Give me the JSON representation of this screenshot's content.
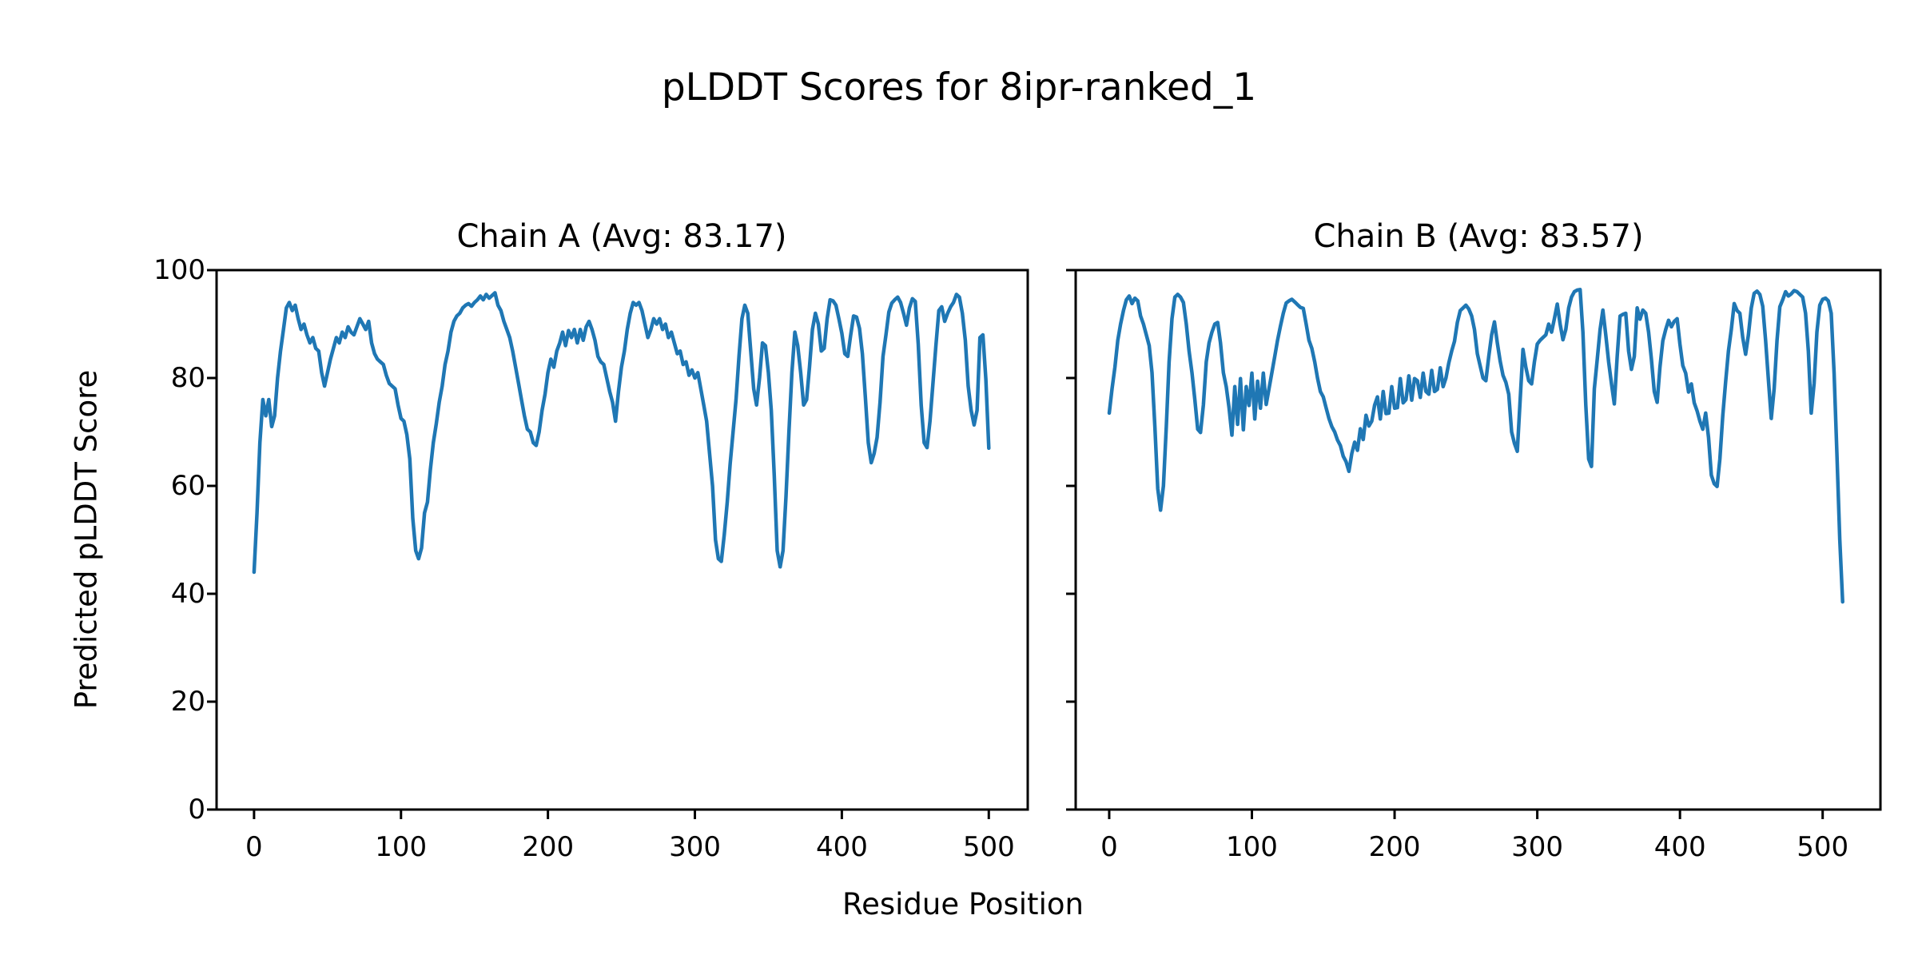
{
  "figure": {
    "suptitle": "pLDDT Scores for 8ipr-ranked_1",
    "xlabel": "Residue Position",
    "ylabel": "Predicted pLDDT Score",
    "background_color": "#ffffff",
    "text_color": "#000000",
    "line_color": "#1f77b4"
  },
  "chart_data": [
    {
      "type": "line",
      "title": "Chain A (Avg: 83.17)",
      "chain": "A",
      "avg_plddt": 83.17,
      "xlabel": "Residue Position",
      "ylabel": "Predicted pLDDT Score",
      "legend": "none",
      "grid": false,
      "line_color": "#1f77b4",
      "x_start": 0,
      "x_step": 2,
      "xlim": [
        -25.5,
        526.5
      ],
      "ylim": [
        0,
        100
      ],
      "xticks": [
        0,
        100,
        200,
        300,
        400,
        500
      ],
      "yticks": [
        0,
        20,
        40,
        60,
        80,
        100
      ],
      "values": [
        44,
        55,
        68,
        76,
        73,
        76,
        71,
        73,
        80,
        85,
        89,
        93,
        94,
        92.5,
        93.5,
        91,
        89,
        90,
        88,
        86.5,
        87.5,
        85.5,
        85,
        81,
        78.5,
        81,
        83.5,
        85.5,
        87.5,
        86.5,
        88.5,
        87.5,
        89.5,
        88.5,
        88,
        89.5,
        91,
        90,
        89,
        90.5,
        86.5,
        84.5,
        83.5,
        83,
        82.5,
        80.5,
        79,
        78.5,
        78,
        75,
        72.5,
        72,
        69.5,
        65,
        54,
        48,
        46.5,
        48.5,
        55,
        57,
        63,
        68,
        71.5,
        75.5,
        78.5,
        82.5,
        85,
        88.5,
        90.5,
        91.5,
        92,
        93,
        93.5,
        93.8,
        93.3,
        94,
        94.5,
        95.2,
        94.5,
        95.5,
        94.8,
        95.3,
        95.8,
        93.5,
        92.5,
        90.5,
        89,
        87.5,
        85,
        82,
        79,
        76,
        73,
        70.5,
        70,
        68,
        67.5,
        70,
        74,
        77,
        81,
        83.5,
        82,
        85,
        86.5,
        88.5,
        86,
        88.8,
        87.5,
        89,
        86.5,
        89,
        87,
        89.5,
        90.5,
        89,
        87,
        84,
        83,
        82.5,
        80,
        77.5,
        75.5,
        72,
        77.5,
        82,
        85,
        89,
        92,
        94,
        93.5,
        94,
        92.5,
        90,
        87.5,
        89,
        91,
        90,
        91,
        89,
        90,
        87.5,
        88.5,
        86.5,
        84.5,
        85,
        82.5,
        83,
        80.5,
        81.5,
        80,
        81,
        78,
        75,
        72,
        66,
        60,
        50,
        46.5,
        46,
        51,
        57,
        64,
        70,
        76,
        84,
        91,
        93.5,
        92,
        85,
        78,
        75,
        80,
        86.5,
        86,
        81,
        74,
        62,
        48,
        45,
        48,
        58,
        70,
        81,
        88.5,
        86,
        81,
        75,
        76,
        82,
        89,
        92,
        90,
        85,
        85.5,
        91,
        94.5,
        94.3,
        93.5,
        91,
        88.3,
        84.5,
        84,
        87.9,
        91.5,
        91.3,
        89.2,
        84.5,
        76.5,
        68,
        64.3,
        66,
        69,
        75.5,
        84,
        88,
        92.2,
        93.9,
        94.5,
        95,
        94,
        92,
        89.8,
        93,
        94.7,
        94.2,
        86.3,
        75,
        68,
        67.1,
        72,
        79,
        86,
        92.5,
        93.2,
        90.5,
        92,
        93.2,
        94,
        95.5,
        95,
        92,
        87,
        78.5,
        74,
        71.3,
        74,
        87.5,
        88,
        79.8,
        67
      ]
    },
    {
      "type": "line",
      "title": "Chain B (Avg: 83.57)",
      "chain": "B",
      "avg_plddt": 83.57,
      "xlabel": "Residue Position",
      "ylabel": "Predicted pLDDT Score",
      "legend": "none",
      "grid": false,
      "line_color": "#1f77b4",
      "x_start": 0,
      "x_step": 2,
      "xlim": [
        -23.5,
        540.5
      ],
      "ylim": [
        0,
        100
      ],
      "xticks": [
        0,
        100,
        200,
        300,
        400,
        500
      ],
      "yticks": [
        0,
        20,
        40,
        60,
        80,
        100
      ],
      "values": [
        73.5,
        78,
        82,
        87,
        90,
        92.5,
        94.5,
        95.2,
        93.8,
        94.8,
        94.3,
        91.5,
        90,
        88,
        86,
        81,
        71,
        59.5,
        55.5,
        60,
        71,
        83,
        91,
        95,
        95.5,
        95,
        94,
        90,
        85,
        81,
        76,
        70.5,
        69.9,
        75,
        83,
        86.5,
        88.5,
        90,
        90.3,
        86.5,
        81,
        78.4,
        74.5,
        69.4,
        78.4,
        71.4,
        79.9,
        70.4,
        78.4,
        74.9,
        80.9,
        72.4,
        79.4,
        74.4,
        80.9,
        75.1,
        78,
        81,
        84,
        87,
        89.6,
        92,
        93.9,
        94.3,
        94.6,
        94.1,
        93.6,
        93.1,
        92.9,
        90,
        87,
        85.5,
        83,
        80,
        77.5,
        76.5,
        74.5,
        72.5,
        71,
        70,
        68.5,
        67.5,
        65.5,
        64.5,
        62.7,
        66,
        68.1,
        66.6,
        70.6,
        68.6,
        73.1,
        71.1,
        72,
        75,
        76.5,
        72.4,
        77.5,
        73.4,
        73.5,
        78.4,
        74.4,
        74.5,
        79.9,
        75.4,
        76,
        80.4,
        75.9,
        79.9,
        79.5,
        76.4,
        80.9,
        77.5,
        77,
        81.4,
        77.5,
        77.9,
        81.9,
        78.4,
        80,
        82.8,
        85,
        86.8,
        90.3,
        92.5,
        93,
        93.5,
        92.8,
        91.5,
        89,
        84.5,
        82.2,
        80,
        79.5,
        84,
        88,
        90.4,
        86.5,
        83.1,
        80.5,
        79.2,
        77,
        70,
        67.9,
        66.4,
        76,
        85.3,
        82,
        79.5,
        78.9,
        83,
        86.3,
        87,
        87.5,
        88,
        90,
        88.5,
        91,
        93.7,
        90,
        87.1,
        89,
        93,
        95,
        96,
        96.3,
        96.4,
        88.5,
        75,
        65,
        63.6,
        78,
        83.4,
        89,
        92.6,
        88,
        83,
        79,
        75.2,
        84,
        91.5,
        91.8,
        92,
        85,
        81.6,
        84,
        93,
        90.9,
        92.6,
        92,
        88.5,
        83.5,
        77.5,
        75.5,
        82,
        86.9,
        89,
        90.7,
        89.5,
        90.5,
        91,
        86.3,
        82.3,
        80.9,
        77.4,
        78.9,
        75.4,
        73.9,
        72,
        70.5,
        73.5,
        69,
        62,
        60.4,
        59.9,
        65,
        73,
        79.3,
        85,
        89,
        93.8,
        92.5,
        92,
        87.5,
        84.4,
        88,
        93,
        95.7,
        96.1,
        95.5,
        93.3,
        87,
        79.7,
        72.5,
        78,
        87,
        93.2,
        94.5,
        96,
        95.2,
        95.6,
        96.2,
        96,
        95.5,
        95,
        92,
        85,
        73.5,
        79,
        88.5,
        93.5,
        94.6,
        94.8,
        94.3,
        92,
        81,
        66.1,
        50.1,
        38.5
      ]
    }
  ]
}
